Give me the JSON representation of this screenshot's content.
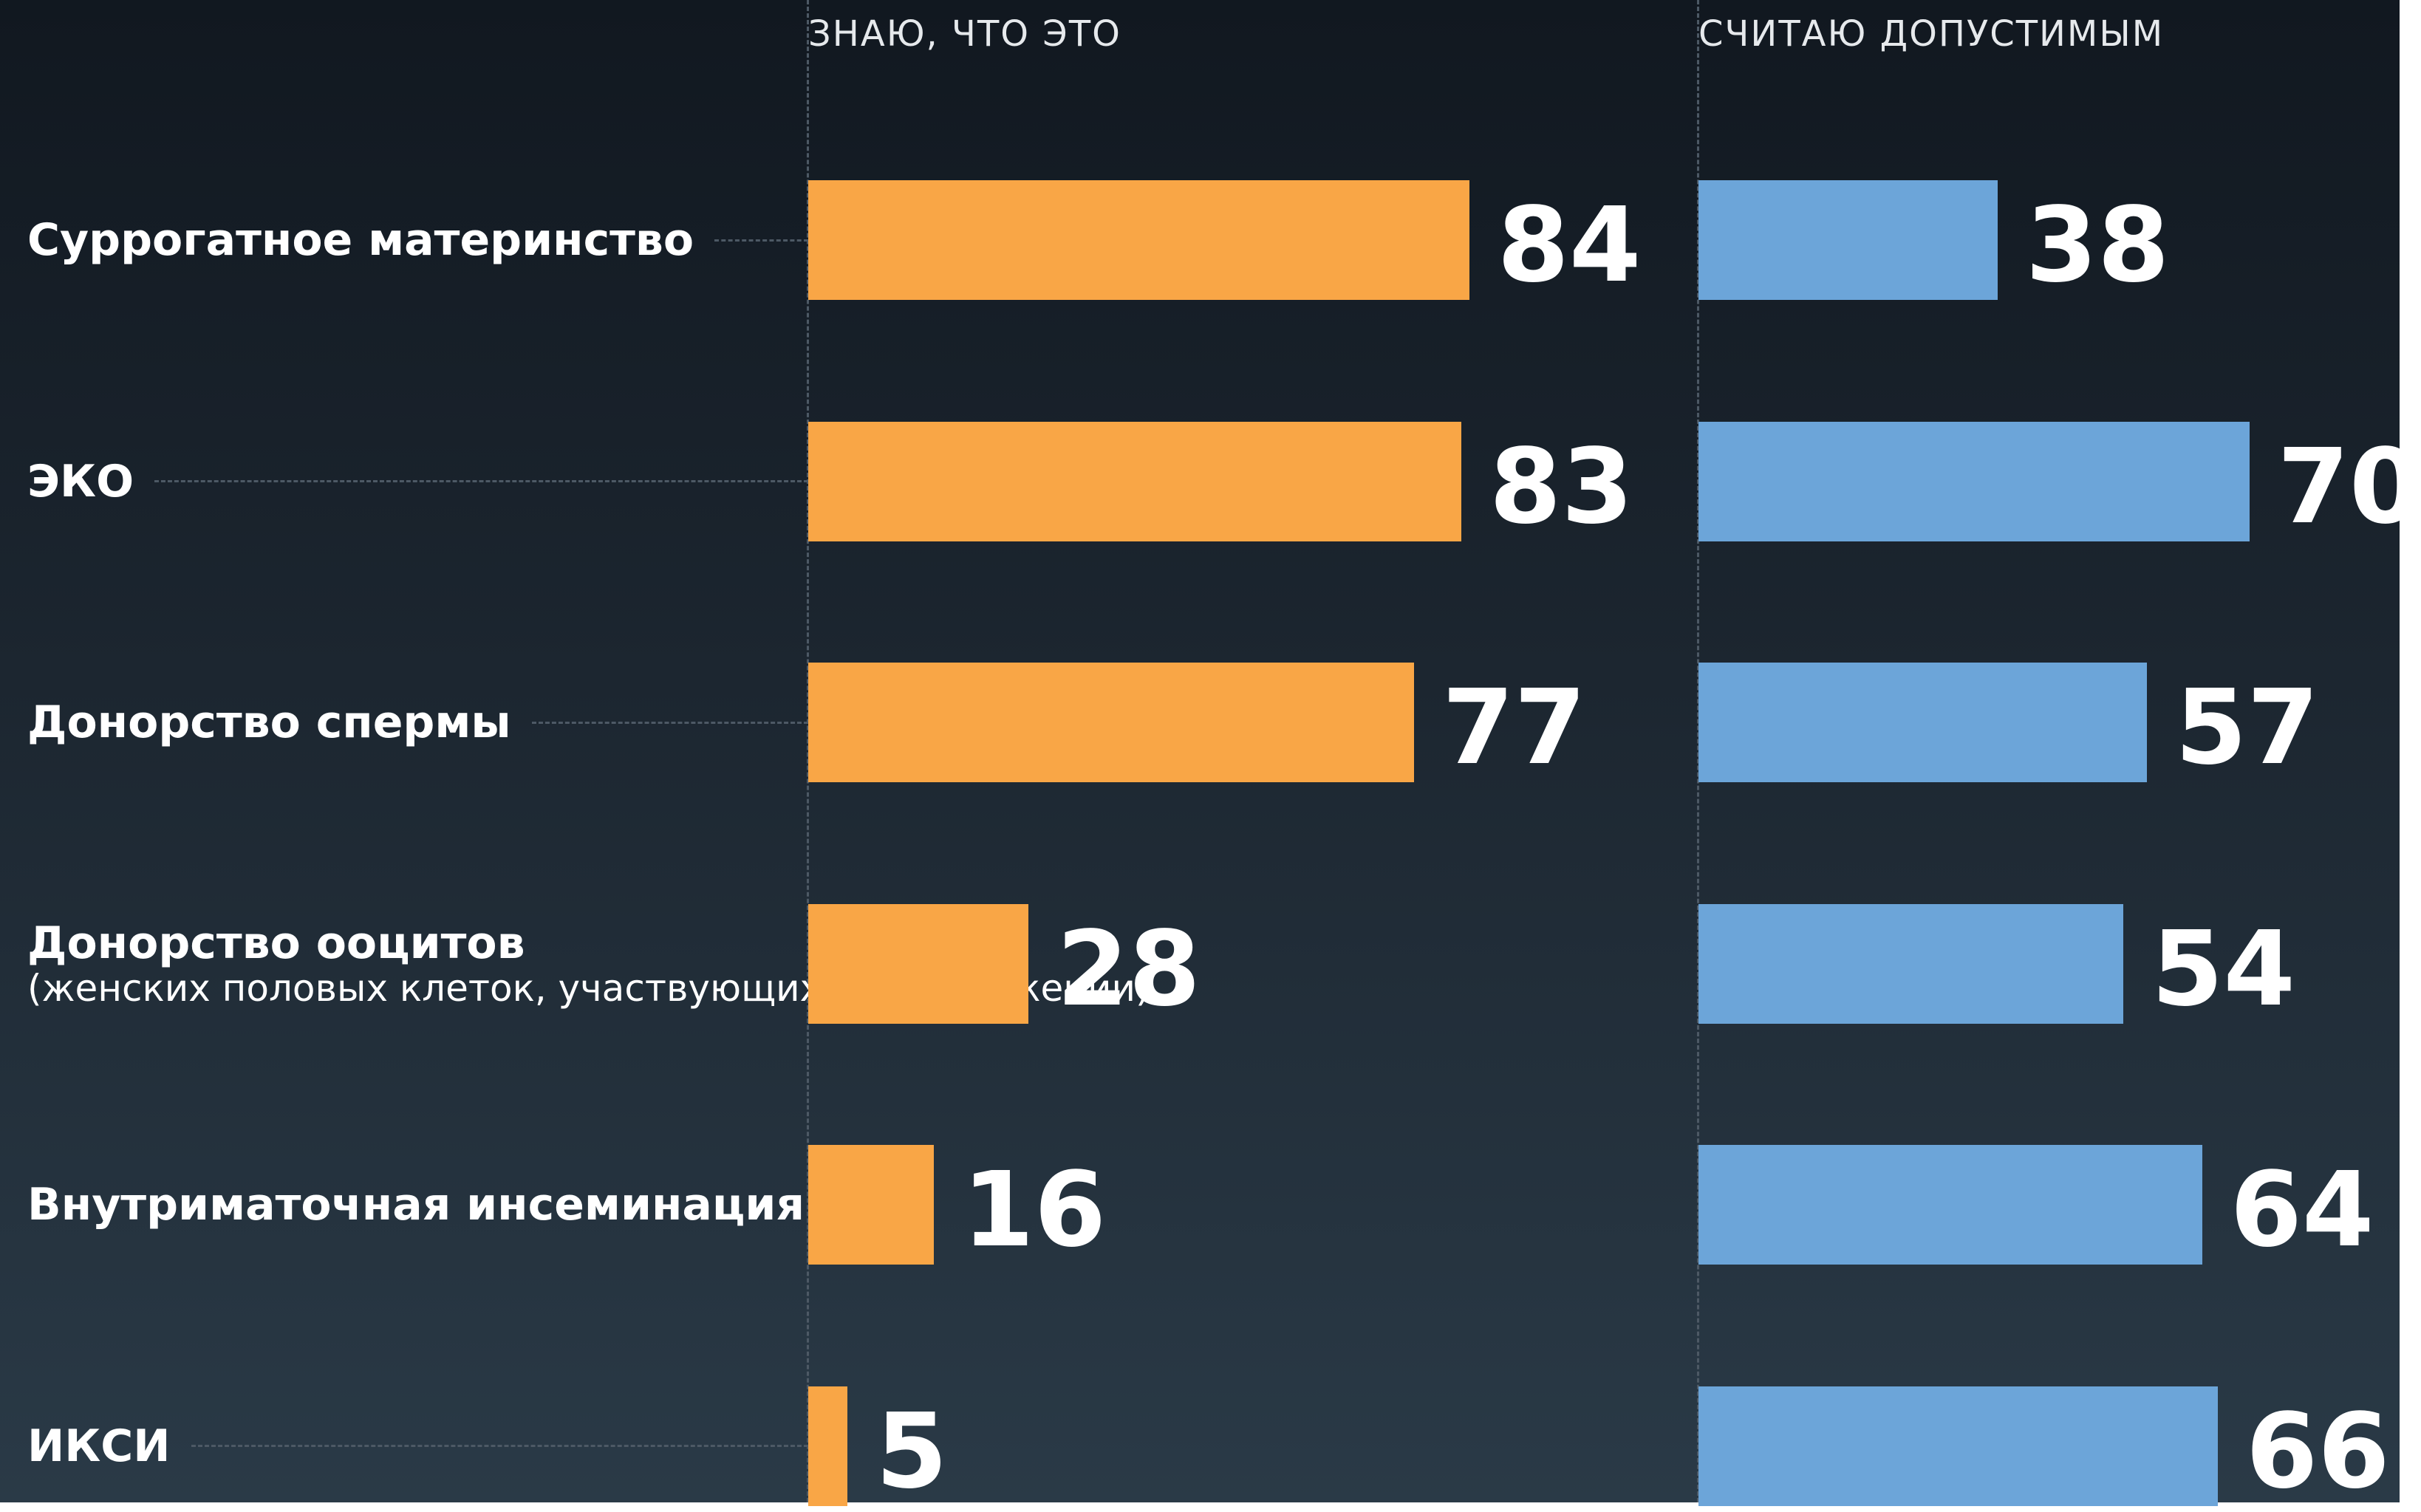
{
  "chart_data": {
    "type": "bar",
    "orientation": "horizontal",
    "categories": [
      "Суррогатное материнство",
      "ЭКО",
      "Донорство спермы",
      "Донорство ооцитов",
      "Внутриматочная инсеминация",
      "ИКСИ"
    ],
    "category_notes": [
      null,
      null,
      null,
      "(женских половых клеток, участвующих в размножении)",
      null,
      null
    ],
    "series": [
      {
        "name": "ЗНАЮ, ЧТО ЭТО",
        "color": "#f9a646",
        "values": [
          84,
          83,
          77,
          28,
          16,
          5
        ]
      },
      {
        "name": "СЧИТАЮ ДОПУСТИМЫМ",
        "color": "#6ca5d9",
        "values": [
          38,
          70,
          57,
          54,
          64,
          66
        ]
      }
    ],
    "xlim": [
      0,
      100
    ]
  }
}
